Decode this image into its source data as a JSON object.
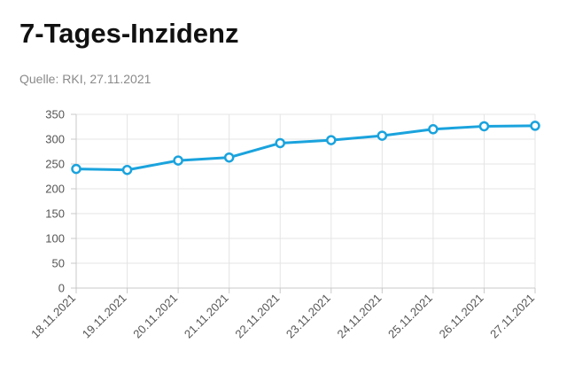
{
  "header": {
    "title": "7-Tages-Inzidenz",
    "source": "Quelle: RKI, 27.11.2021"
  },
  "colors": {
    "line": "#1aa3dd",
    "grid": "#e4e4e4",
    "axis": "#c8c8c8"
  },
  "chart_data": {
    "type": "line",
    "title": "7-Tages-Inzidenz",
    "xlabel": "",
    "ylabel": "",
    "categories": [
      "18.11.2021",
      "19.11.2021",
      "20.11.2021",
      "21.11.2021",
      "22.11.2021",
      "23.11.2021",
      "24.11.2021",
      "25.11.2021",
      "26.11.2021",
      "27.11.2021"
    ],
    "series": [
      {
        "values": [
          240,
          238,
          257,
          263,
          292,
          298,
          307,
          320,
          326,
          327
        ]
      }
    ],
    "ylim": [
      0,
      350
    ],
    "yticks": [
      0,
      50,
      100,
      150,
      200,
      250,
      300,
      350
    ],
    "grid": true,
    "legend": "none"
  }
}
